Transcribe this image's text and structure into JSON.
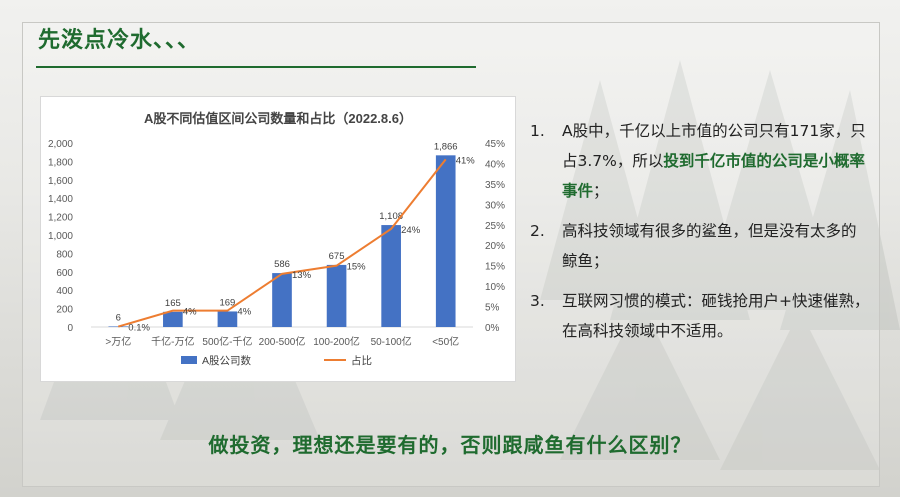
{
  "slide": {
    "title": "先泼点冷水、、、",
    "bottom_question": "做投资，理想还是要有的，否则跟咸鱼有什么区别？",
    "colors": {
      "accent": "#1f6b2f",
      "bar": "#4472c4",
      "line": "#ed7d31"
    }
  },
  "points": [
    {
      "num": "1.",
      "text_a": "A股中，千亿以上市值的公司只有171家，只占3.7%，所以",
      "highlight": "投到千亿市值的公司是小概率事件",
      "text_b": "；"
    },
    {
      "num": "2.",
      "text_a": "高科技领域有很多的鲨鱼，但是没有太多的鲸鱼；",
      "highlight": "",
      "text_b": ""
    },
    {
      "num": "3.",
      "text_a": "互联网习惯的模式：砸钱抢用户+快速催熟，在高科技领域中不适用。",
      "highlight": "",
      "text_b": ""
    }
  ],
  "chart_data": {
    "type": "bar",
    "title": "A股不同估值区间公司数量和占比（2022.8.6）",
    "categories": [
      ">万亿",
      "千亿-万亿",
      "500亿-千亿",
      "200-500亿",
      "100-200亿",
      "50-100亿",
      "<50亿"
    ],
    "series": [
      {
        "name": "A股公司数",
        "type": "bar",
        "axis": "left",
        "values": [
          6,
          165,
          169,
          586,
          675,
          1108,
          1866
        ],
        "labels": [
          "6",
          "165",
          "169",
          "586",
          "675",
          "1,108",
          "1,866"
        ]
      },
      {
        "name": "占比",
        "type": "line",
        "axis": "right",
        "values": [
          0.1,
          4,
          4,
          13,
          15,
          24,
          41
        ],
        "labels": [
          "0.1%",
          "4%",
          "4%",
          "13%",
          "15%",
          "24%",
          "41%"
        ]
      }
    ],
    "ylim_left": [
      0,
      2000
    ],
    "yticks_left": [
      "0",
      "200",
      "400",
      "600",
      "800",
      "1,000",
      "1,200",
      "1,400",
      "1,600",
      "1,800",
      "2,000"
    ],
    "ylim_right": [
      0,
      45
    ],
    "yticks_right": [
      "0%",
      "5%",
      "10%",
      "15%",
      "20%",
      "25%",
      "30%",
      "35%",
      "40%",
      "45%"
    ],
    "grid": false,
    "legend": "bottom"
  }
}
